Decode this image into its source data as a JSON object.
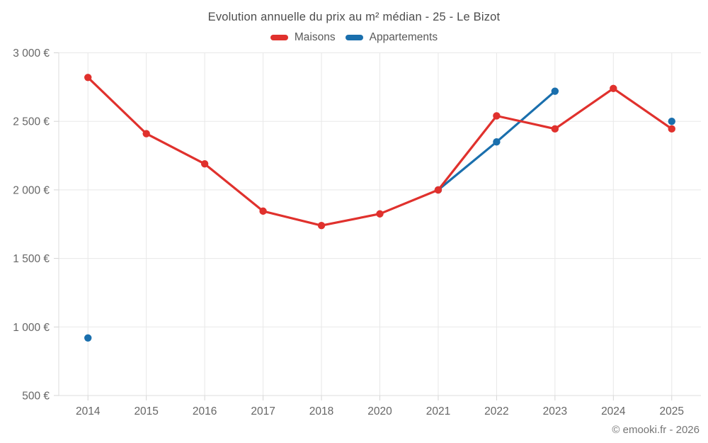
{
  "footer": {
    "text": "© emooki.fr - 2026"
  },
  "colors": {
    "maisons": "#e0312d",
    "appartements": "#1a6fad",
    "grid": "#e8e8e8",
    "axis_border": "#dcdcdc",
    "tick_mark": "#d4d4d4",
    "tick_text": "#666666",
    "title_text": "#4d4d4d",
    "legend_text": "#595959",
    "footer_text": "#757575"
  },
  "chart_data": {
    "type": "line",
    "title": "Evolution annuelle du prix au m² médian - 25 - Le Bizot",
    "categories": [
      "2014",
      "2015",
      "2016",
      "2017",
      "2018",
      "2020",
      "2021",
      "2022",
      "2023",
      "2024",
      "2025"
    ],
    "series": [
      {
        "name": "Maisons",
        "color": "#e0312d",
        "values": [
          2820,
          2410,
          2190,
          1845,
          1740,
          1825,
          2000,
          2540,
          2445,
          2740,
          2445
        ]
      },
      {
        "name": "Appartements",
        "color": "#1a6fad",
        "values": [
          920,
          null,
          null,
          null,
          null,
          null,
          2000,
          2350,
          2720,
          null,
          2500
        ]
      }
    ],
    "xlabel": "",
    "ylabel": "",
    "ylim": [
      500,
      3000
    ],
    "yticks": [
      {
        "value": 3000,
        "label": "3 000 €"
      },
      {
        "value": 2500,
        "label": "2 500 €"
      },
      {
        "value": 2000,
        "label": "2 000 €"
      },
      {
        "value": 1500,
        "label": "1 500 €"
      },
      {
        "value": 1000,
        "label": "1 000 €"
      },
      {
        "value": 500,
        "label": "500 €"
      }
    ],
    "grid": true,
    "legend_position": "top"
  }
}
